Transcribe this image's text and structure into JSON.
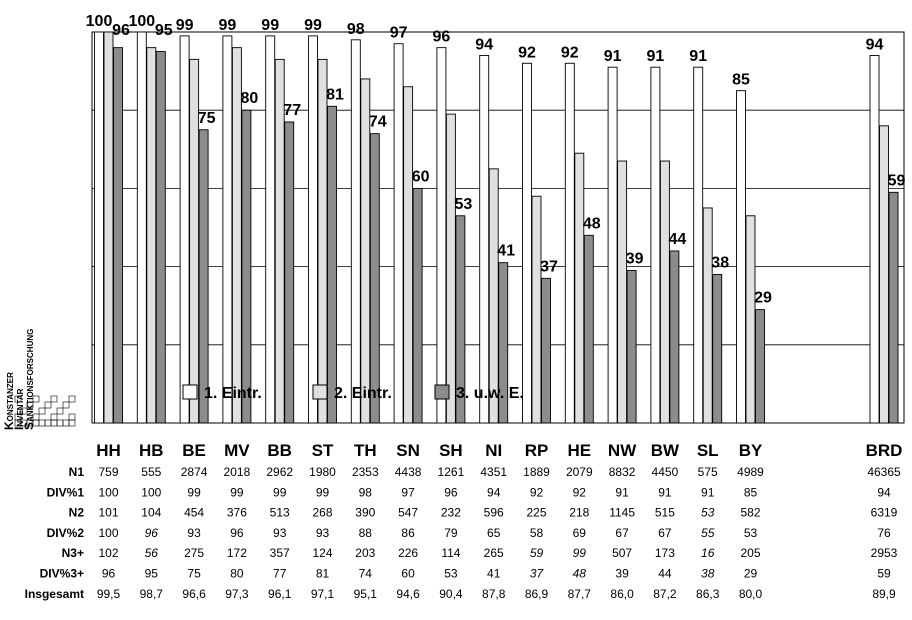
{
  "chart_data": {
    "type": "bar",
    "categories": [
      "HH",
      "HB",
      "BE",
      "MV",
      "BB",
      "ST",
      "TH",
      "SN",
      "SH",
      "NI",
      "RP",
      "HE",
      "NW",
      "BW",
      "SL",
      "BY",
      "BRD"
    ],
    "series": [
      {
        "name": "1. Eintr.",
        "values": [
          100,
          100,
          99,
          99,
          99,
          99,
          98,
          97,
          96,
          94,
          92,
          92,
          91,
          91,
          91,
          85,
          94
        ],
        "color": "#ffffff",
        "labeled": true
      },
      {
        "name": "2. Eintr.",
        "values": [
          100,
          96,
          93,
          96,
          93,
          93,
          88,
          86,
          79,
          65,
          58,
          69,
          67,
          67,
          55,
          53,
          76
        ],
        "color": "#e0e0e0",
        "labeled": false
      },
      {
        "name": "3. u.w. E.",
        "values": [
          96,
          95,
          75,
          80,
          77,
          81,
          74,
          60,
          53,
          41,
          37,
          48,
          39,
          44,
          38,
          29,
          59
        ],
        "color": "#8c8c8c",
        "labeled": true
      }
    ],
    "ylim": [
      0,
      100
    ],
    "grid": true,
    "legend_position": "bottom-left inside plot",
    "table": {
      "rows": [
        {
          "label": "N1",
          "values": [
            "759",
            "555",
            "2874",
            "2018",
            "2962",
            "1980",
            "2353",
            "4438",
            "1261",
            "4351",
            "1889",
            "2079",
            "8832",
            "4450",
            "575",
            "4989",
            "46365"
          ]
        },
        {
          "label": "DIV%1",
          "values": [
            "100",
            "100",
            "99",
            "99",
            "99",
            "99",
            "98",
            "97",
            "96",
            "94",
            "92",
            "92",
            "91",
            "91",
            "91",
            "85",
            "94"
          ]
        },
        {
          "label": "N2",
          "values": [
            "101",
            "104",
            "454",
            "376",
            "513",
            "268",
            "390",
            "547",
            "232",
            "596",
            "225",
            "218",
            "1145",
            "515",
            "53",
            "582",
            "6319"
          ],
          "italic": [
            14
          ]
        },
        {
          "label": "DIV%2",
          "values": [
            "100",
            "96",
            "93",
            "96",
            "93",
            "93",
            "88",
            "86",
            "79",
            "65",
            "58",
            "69",
            "67",
            "67",
            "55",
            "53",
            "76"
          ],
          "italic": [
            1,
            14
          ]
        },
        {
          "label": "N3+",
          "values": [
            "102",
            "56",
            "275",
            "172",
            "357",
            "124",
            "203",
            "226",
            "114",
            "265",
            "59",
            "99",
            "507",
            "173",
            "16",
            "205",
            "2953"
          ],
          "italic": [
            1,
            10,
            11,
            14
          ]
        },
        {
          "label": "DIV%3+",
          "values": [
            "96",
            "95",
            "75",
            "80",
            "77",
            "81",
            "74",
            "60",
            "53",
            "41",
            "37",
            "48",
            "39",
            "44",
            "38",
            "29",
            "59"
          ],
          "italic": [
            10,
            11,
            14
          ]
        },
        {
          "label": "Insgesamt",
          "values": [
            "99,5",
            "98,7",
            "96,6",
            "97,3",
            "96,1",
            "97,1",
            "95,1",
            "94,6",
            "90,4",
            "87,8",
            "86,9",
            "87,7",
            "86,0",
            "87,2",
            "86,3",
            "80,0",
            "89,9"
          ]
        }
      ]
    }
  },
  "side_label": {
    "lines": [
      {
        "cap": "K",
        "rest": "ONSTANZER"
      },
      {
        "cap": "I",
        "rest": "NVENTAR"
      },
      {
        "cap": "S",
        "rest": "ANKTIONSFORSCHUNG"
      }
    ]
  }
}
